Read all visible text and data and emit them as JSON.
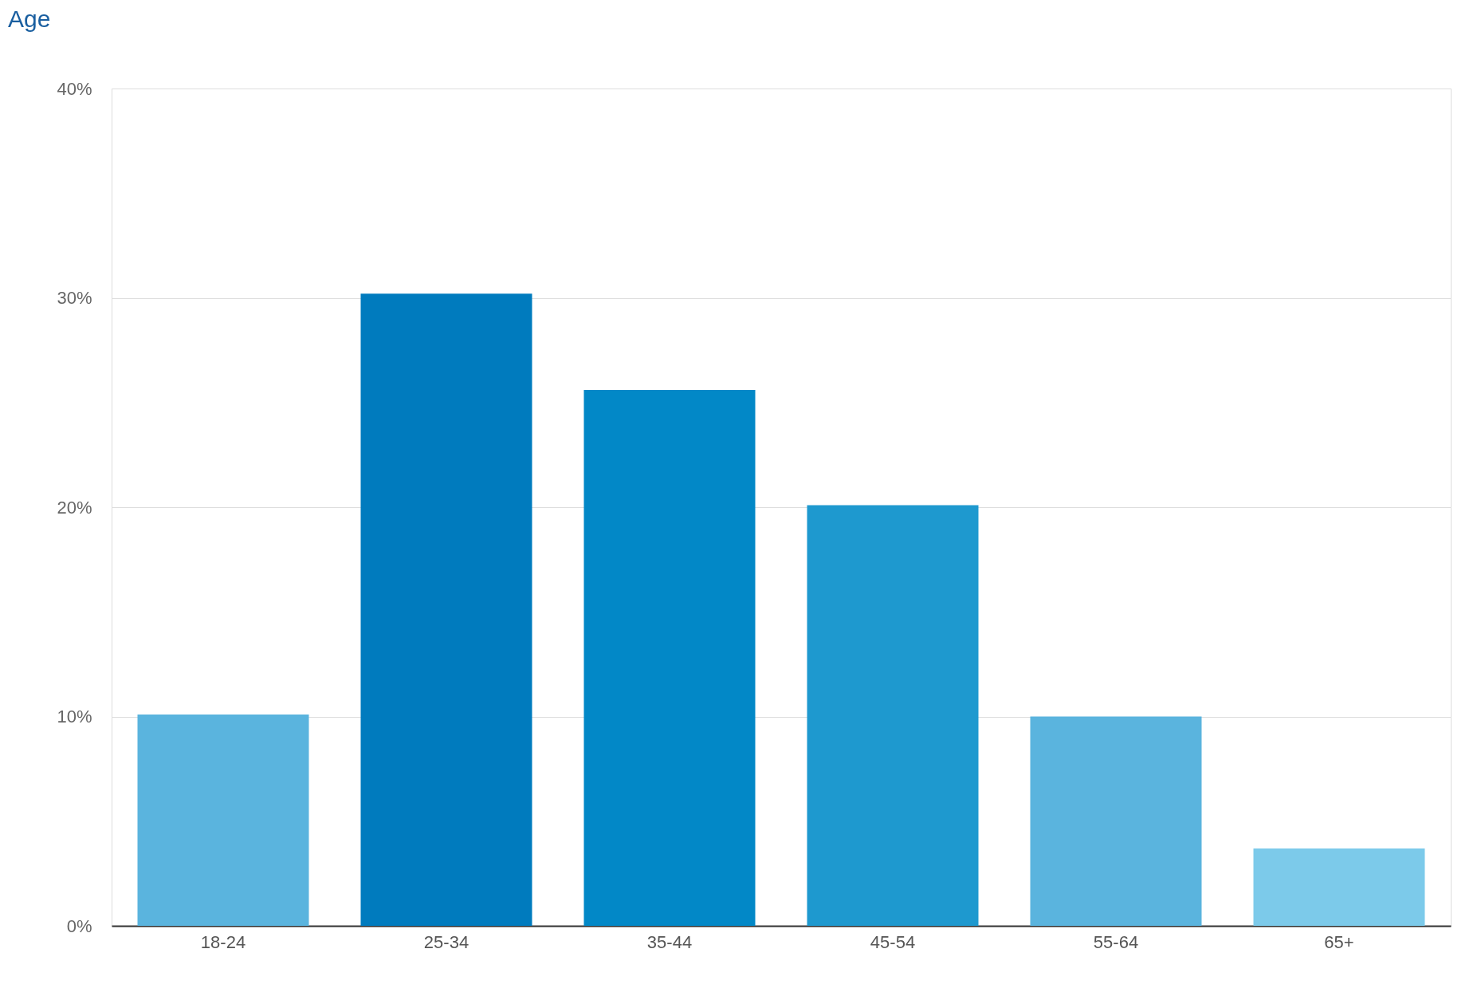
{
  "chart_data": {
    "type": "bar",
    "title": "Age",
    "categories": [
      "18-24",
      "25-34",
      "35-44",
      "45-54",
      "55-64",
      "65+"
    ],
    "values": [
      10.1,
      30.2,
      25.6,
      20.1,
      10.0,
      3.7
    ],
    "colors": [
      "#5ab4de",
      "#007bbe",
      "#0288c7",
      "#1e99cf",
      "#5ab4de",
      "#7ccaea"
    ],
    "ylim": [
      0,
      40
    ],
    "yticks": [
      {
        "value": 0,
        "label": "0%"
      },
      {
        "value": 10,
        "label": "10%"
      },
      {
        "value": 20,
        "label": "20%"
      },
      {
        "value": 30,
        "label": "30%"
      },
      {
        "value": 40,
        "label": "40%"
      }
    ],
    "grid": "y",
    "legend": false
  }
}
